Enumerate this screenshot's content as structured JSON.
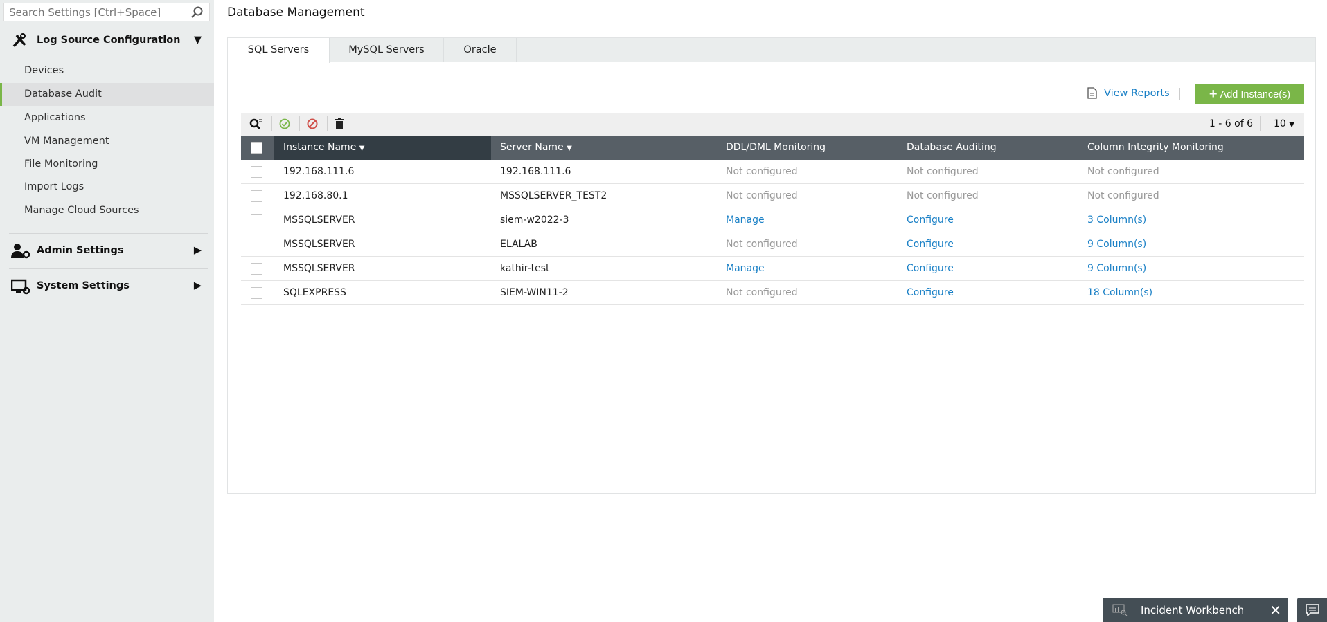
{
  "sidebar": {
    "search_placeholder": "Search Settings [Ctrl+Space]",
    "sections": [
      {
        "label": "Log Source Configuration",
        "icon": "tools-icon",
        "expanded": true
      },
      {
        "label": "Admin Settings",
        "icon": "admin-settings-icon",
        "expanded": false
      },
      {
        "label": "System Settings",
        "icon": "system-settings-icon",
        "expanded": false
      }
    ],
    "items": [
      {
        "label": "Devices"
      },
      {
        "label": "Database Audit",
        "active": true
      },
      {
        "label": "Applications"
      },
      {
        "label": "VM Management"
      },
      {
        "label": "File Monitoring"
      },
      {
        "label": "Import Logs"
      },
      {
        "label": "Manage Cloud Sources"
      }
    ]
  },
  "header": {
    "title": "Database Management"
  },
  "tabs": [
    {
      "label": "SQL Servers",
      "active": true
    },
    {
      "label": "MySQL Servers"
    },
    {
      "label": "Oracle"
    }
  ],
  "actions": {
    "view_reports": "View Reports",
    "add_instance": "Add Instance(s)"
  },
  "pagination": {
    "range": "1 - 6 of 6",
    "per_page": "10"
  },
  "table": {
    "columns": [
      "Instance Name",
      "Server Name",
      "DDL/DML Monitoring",
      "Database Auditing",
      "Column Integrity Monitoring"
    ],
    "rows": [
      [
        "192.168.111.6",
        "192.168.111.6",
        "Not configured",
        "Not configured",
        "Not configured"
      ],
      [
        "192.168.80.1",
        "MSSQLSERVER_TEST2",
        "Not configured",
        "Not configured",
        "Not configured"
      ],
      [
        "MSSQLSERVER",
        "siem-w2022-3",
        "Manage",
        "Configure",
        "3 Column(s)"
      ],
      [
        "MSSQLSERVER",
        "ELALAB",
        "Not configured",
        "Configure",
        "9 Column(s)"
      ],
      [
        "MSSQLSERVER",
        "kathir-test",
        "Manage",
        "Configure",
        "9 Column(s)"
      ],
      [
        "SQLEXPRESS",
        "SIEM-WIN11-2",
        "Not configured",
        "Configure",
        "18 Column(s)"
      ]
    ]
  },
  "footer": {
    "incident_workbench": "Incident Workbench"
  },
  "colors": {
    "accent": "#7ab648",
    "link": "#1a80c6",
    "header": "#575f66",
    "sorted_header": "#333d44"
  }
}
